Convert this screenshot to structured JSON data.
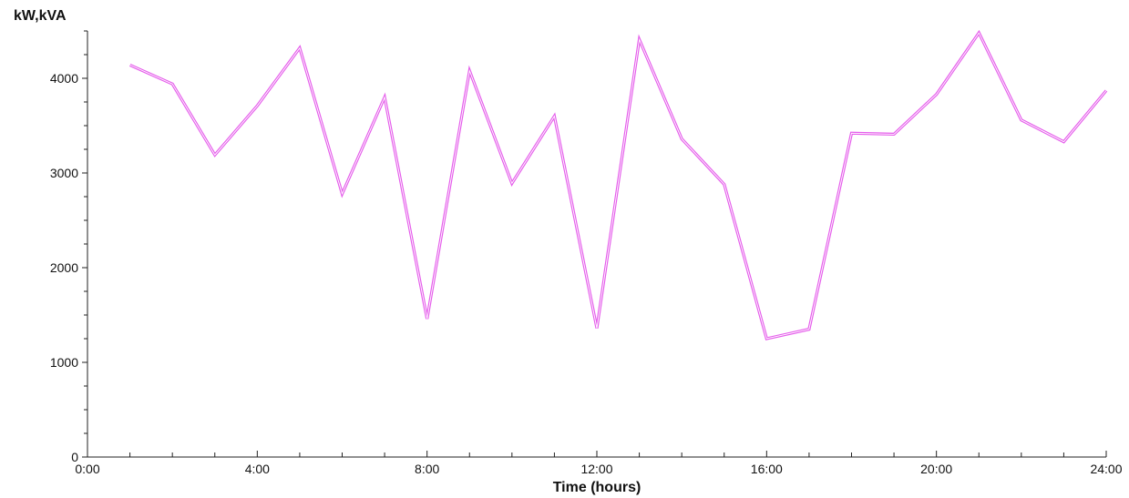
{
  "chart_data": {
    "type": "line",
    "xlabel": "Time (hours)",
    "ylabel": "kW,kVA",
    "xlim": [
      0,
      24
    ],
    "ylim": [
      0,
      4500
    ],
    "x_ticks": [
      {
        "value": 0,
        "label": "0:00"
      },
      {
        "value": 4,
        "label": "4:00"
      },
      {
        "value": 8,
        "label": "8:00"
      },
      {
        "value": 12,
        "label": "12:00"
      },
      {
        "value": 16,
        "label": "16:00"
      },
      {
        "value": 20,
        "label": "20:00"
      },
      {
        "value": 24,
        "label": "24:00"
      }
    ],
    "y_ticks": [
      {
        "value": 0,
        "label": "0"
      },
      {
        "value": 1000,
        "label": "1000"
      },
      {
        "value": 2000,
        "label": "2000"
      },
      {
        "value": 3000,
        "label": "3000"
      },
      {
        "value": 4000,
        "label": "4000"
      }
    ],
    "grid": false,
    "series": [
      {
        "color": "#e040e8",
        "x": [
          1,
          2,
          3,
          4,
          5,
          6,
          7,
          8,
          9,
          10,
          11,
          12,
          13,
          14,
          15,
          16,
          17,
          18,
          19,
          20,
          21,
          22,
          23,
          24
        ],
        "y": [
          4140,
          3940,
          3190,
          3710,
          4320,
          2780,
          3800,
          1460,
          4080,
          2890,
          3600,
          1360,
          4410,
          3360,
          2880,
          1250,
          1350,
          3420,
          3410,
          3830,
          4480,
          3560,
          3330,
          3870
        ]
      }
    ]
  }
}
